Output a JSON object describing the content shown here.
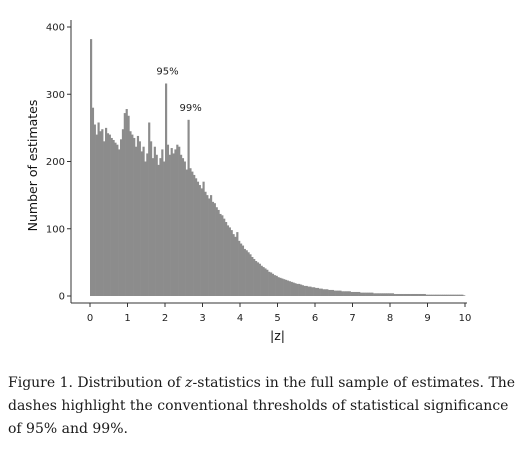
{
  "chart_data": {
    "type": "bar",
    "title": "",
    "xlabel": "|z|",
    "ylabel": "Number of estimates",
    "xlim": [
      0,
      10
    ],
    "ylim": [
      0,
      400
    ],
    "xticks": [
      "0",
      "1",
      "2",
      "3",
      "4",
      "5",
      "6",
      "7",
      "8",
      "9",
      "10"
    ],
    "yticks": [
      "0",
      "100",
      "200",
      "300",
      "400"
    ],
    "grid": false,
    "bar_color": "#8c8c8c",
    "bin_width": 0.05,
    "x": [
      0.025,
      0.075,
      0.125,
      0.175,
      0.225,
      0.275,
      0.325,
      0.375,
      0.425,
      0.475,
      0.525,
      0.575,
      0.625,
      0.675,
      0.725,
      0.775,
      0.825,
      0.875,
      0.925,
      0.975,
      1.025,
      1.075,
      1.125,
      1.175,
      1.225,
      1.275,
      1.325,
      1.375,
      1.425,
      1.475,
      1.525,
      1.575,
      1.625,
      1.675,
      1.725,
      1.775,
      1.825,
      1.875,
      1.925,
      1.975,
      2.025,
      2.075,
      2.125,
      2.175,
      2.225,
      2.275,
      2.325,
      2.375,
      2.425,
      2.475,
      2.525,
      2.575,
      2.625,
      2.675,
      2.725,
      2.775,
      2.825,
      2.875,
      2.925,
      2.975,
      3.025,
      3.075,
      3.125,
      3.175,
      3.225,
      3.275,
      3.325,
      3.375,
      3.425,
      3.475,
      3.525,
      3.575,
      3.625,
      3.675,
      3.725,
      3.775,
      3.825,
      3.875,
      3.925,
      3.975,
      4.025,
      4.075,
      4.125,
      4.175,
      4.225,
      4.275,
      4.325,
      4.375,
      4.425,
      4.475,
      4.525,
      4.575,
      4.625,
      4.675,
      4.725,
      4.775,
      4.825,
      4.875,
      4.925,
      4.975,
      5.025,
      5.075,
      5.125,
      5.175,
      5.225,
      5.275,
      5.325,
      5.375,
      5.425,
      5.475,
      5.525,
      5.575,
      5.625,
      5.675,
      5.725,
      5.775,
      5.825,
      5.875,
      5.925,
      5.975,
      6.025,
      6.075,
      6.125,
      6.175,
      6.225,
      6.275,
      6.325,
      6.375,
      6.425,
      6.475,
      6.525,
      6.575,
      6.625,
      6.675,
      6.725,
      6.775,
      6.825,
      6.875,
      6.925,
      6.975,
      7.025,
      7.075,
      7.125,
      7.175,
      7.225,
      7.275,
      7.325,
      7.375,
      7.425,
      7.475,
      7.525,
      7.575,
      7.625,
      7.675,
      7.725,
      7.775,
      7.825,
      7.875,
      7.925,
      7.975,
      8.025,
      8.075,
      8.125,
      8.175,
      8.225,
      8.275,
      8.325,
      8.375,
      8.425,
      8.475,
      8.525,
      8.575,
      8.625,
      8.675,
      8.725,
      8.775,
      8.825,
      8.875,
      8.925,
      8.975,
      9.025,
      9.075,
      9.125,
      9.175,
      9.225,
      9.275,
      9.325,
      9.375,
      9.425,
      9.475,
      9.525,
      9.575,
      9.625,
      9.675,
      9.725,
      9.775,
      9.825,
      9.875,
      9.925,
      9.975
    ],
    "values": [
      382,
      280,
      255,
      240,
      258,
      245,
      248,
      230,
      250,
      242,
      240,
      235,
      232,
      228,
      225,
      218,
      233,
      248,
      272,
      278,
      268,
      245,
      240,
      235,
      222,
      238,
      230,
      215,
      222,
      200,
      212,
      258,
      230,
      205,
      222,
      210,
      195,
      205,
      218,
      200,
      316,
      225,
      210,
      220,
      212,
      218,
      225,
      222,
      210,
      205,
      200,
      188,
      262,
      190,
      185,
      180,
      175,
      170,
      165,
      160,
      170,
      155,
      150,
      145,
      150,
      140,
      138,
      132,
      128,
      122,
      120,
      115,
      110,
      105,
      102,
      98,
      92,
      88,
      95,
      82,
      78,
      75,
      70,
      68,
      65,
      62,
      58,
      55,
      52,
      50,
      48,
      45,
      43,
      41,
      39,
      36,
      35,
      33,
      31,
      30,
      28,
      27,
      26,
      25,
      24,
      23,
      22,
      21,
      20,
      19,
      18,
      18,
      17,
      16,
      15,
      15,
      14,
      14,
      13,
      13,
      12,
      12,
      11,
      11,
      10,
      10,
      10,
      9,
      9,
      9,
      8,
      8,
      8,
      8,
      7,
      7,
      7,
      7,
      7,
      6,
      6,
      6,
      6,
      6,
      5,
      5,
      5,
      5,
      5,
      5,
      5,
      4,
      4,
      4,
      4,
      4,
      4,
      4,
      4,
      4,
      4,
      4,
      3,
      3,
      3,
      3,
      3,
      3,
      3,
      3,
      3,
      3,
      3,
      3,
      3,
      3,
      3,
      3,
      3,
      2,
      2,
      2,
      2,
      2,
      2,
      2,
      2,
      2,
      2,
      2,
      2,
      2,
      2,
      2,
      2,
      2,
      2,
      2,
      2,
      1
    ],
    "annotations": [
      {
        "text": "95%",
        "x": 1.96,
        "y": 316
      },
      {
        "text": "99%",
        "x": 2.576,
        "y": 262
      }
    ]
  },
  "caption": {
    "prefix": "Figure 1. Distribution of ",
    "italic": "z",
    "suffix": "-statistics in the full sample of estimates. The dashes highlight the conventional thresholds of statistical significance of 95% and 99%."
  }
}
